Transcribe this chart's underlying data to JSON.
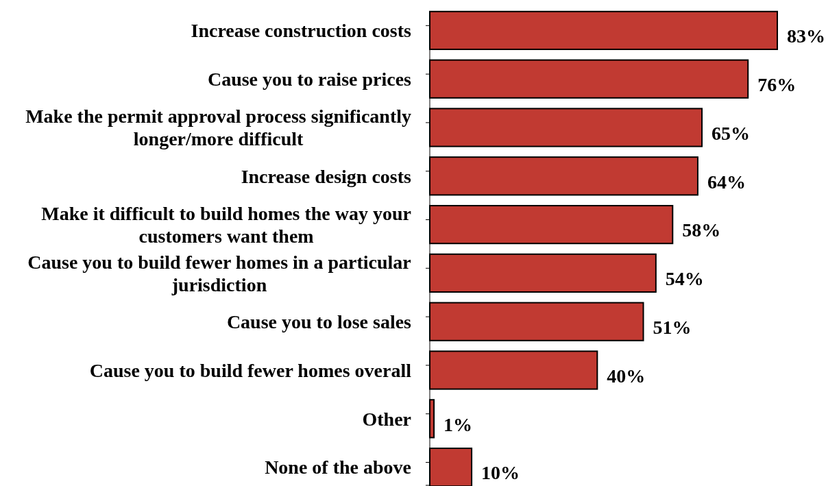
{
  "chart_data": {
    "type": "bar",
    "orientation": "horizontal",
    "categories": [
      "Increase construction costs",
      "Cause you to raise prices",
      "Make the permit approval process significantly longer/more difficult",
      "Increase design costs",
      "Make it difficult to build homes the way your customers want them",
      "Cause you to build fewer homes in a particular jurisdiction",
      "Cause you to lose sales",
      "Cause you to build fewer homes overall",
      "Other",
      "None of the above"
    ],
    "values": [
      83,
      76,
      65,
      64,
      58,
      54,
      51,
      40,
      1,
      10
    ],
    "value_labels": [
      "83%",
      "76%",
      "65%",
      "64%",
      "58%",
      "54%",
      "51%",
      "40%",
      "1%",
      "10%"
    ],
    "color": "#c13a32"
  }
}
